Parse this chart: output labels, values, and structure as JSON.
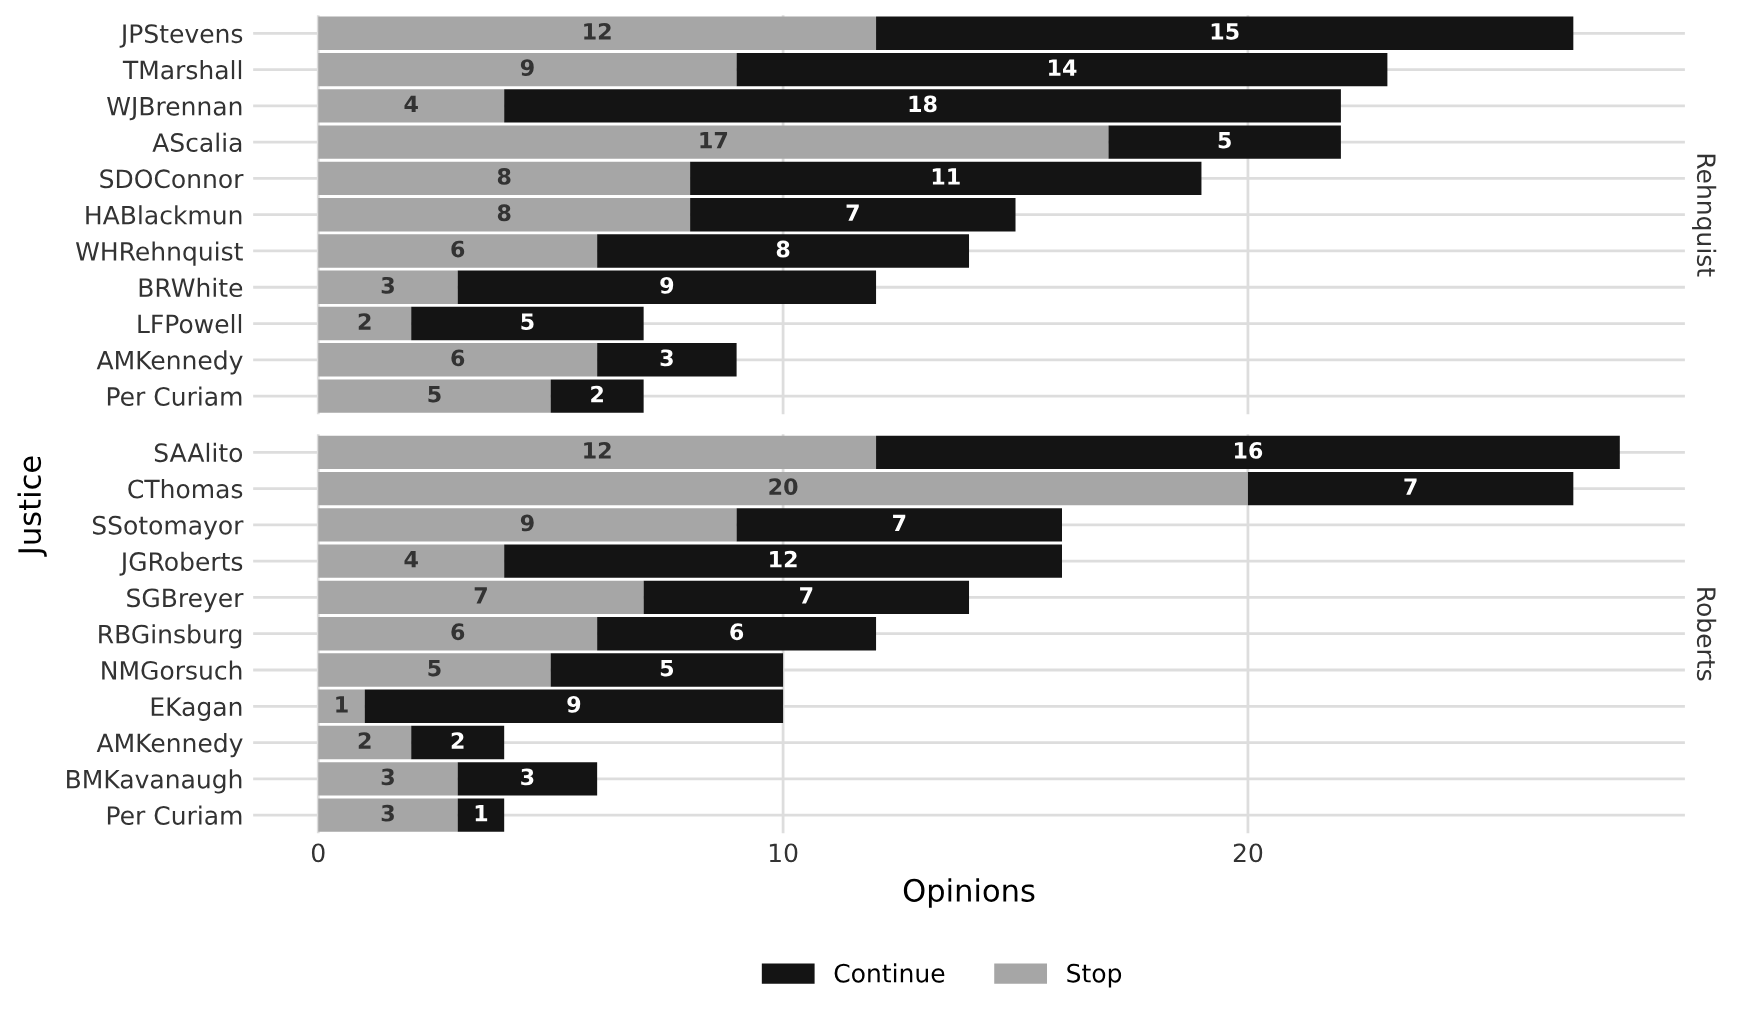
{
  "chart_data": [
    {
      "type": "bar",
      "orientation": "horizontal",
      "stacked": true,
      "title": "Rehnquist",
      "ylabel": "Justice",
      "categories": [
        "JPStevens",
        "TMarshall",
        "WJBrennan",
        "AScalia",
        "SDOConnor",
        "HABlackmun",
        "WHRehnquist",
        "BRWhite",
        "LFPowell",
        "AMKennedy",
        "Per Curiam"
      ],
      "series": [
        {
          "name": "Stop",
          "color": "#a6a6a6",
          "values": [
            12,
            9,
            4,
            17,
            8,
            8,
            6,
            3,
            2,
            6,
            5
          ]
        },
        {
          "name": "Continue",
          "color": "#141414",
          "values": [
            15,
            14,
            18,
            5,
            11,
            7,
            8,
            9,
            5,
            3,
            2
          ]
        }
      ],
      "xlim": [
        -1.4,
        29.4
      ],
      "xticks": [
        0,
        10,
        20
      ],
      "tick_labels": "y",
      "grid": true,
      "data_labels": true,
      "legend": "bottom"
    },
    {
      "type": "bar",
      "orientation": "horizontal",
      "stacked": true,
      "title": "Roberts",
      "xlabel": "Opinions",
      "categories": [
        "SAAlito",
        "CThomas",
        "SSotomayor",
        "JGRoberts",
        "SGBreyer",
        "RBGinsburg",
        "NMGorsuch",
        "EKagan",
        "AMKennedy",
        "BMKavanaugh",
        "Per Curiam"
      ],
      "series": [
        {
          "name": "Stop",
          "color": "#a6a6a6",
          "values": [
            12,
            20,
            9,
            4,
            7,
            6,
            5,
            1,
            2,
            3,
            3
          ]
        },
        {
          "name": "Continue",
          "color": "#141414",
          "values": [
            16,
            7,
            7,
            12,
            7,
            6,
            5,
            9,
            2,
            3,
            1
          ]
        }
      ],
      "xlim": [
        -1.4,
        29.4
      ],
      "xticks": [
        0,
        10,
        20
      ],
      "grid": true,
      "data_labels": true,
      "legend": "bottom"
    }
  ]
}
